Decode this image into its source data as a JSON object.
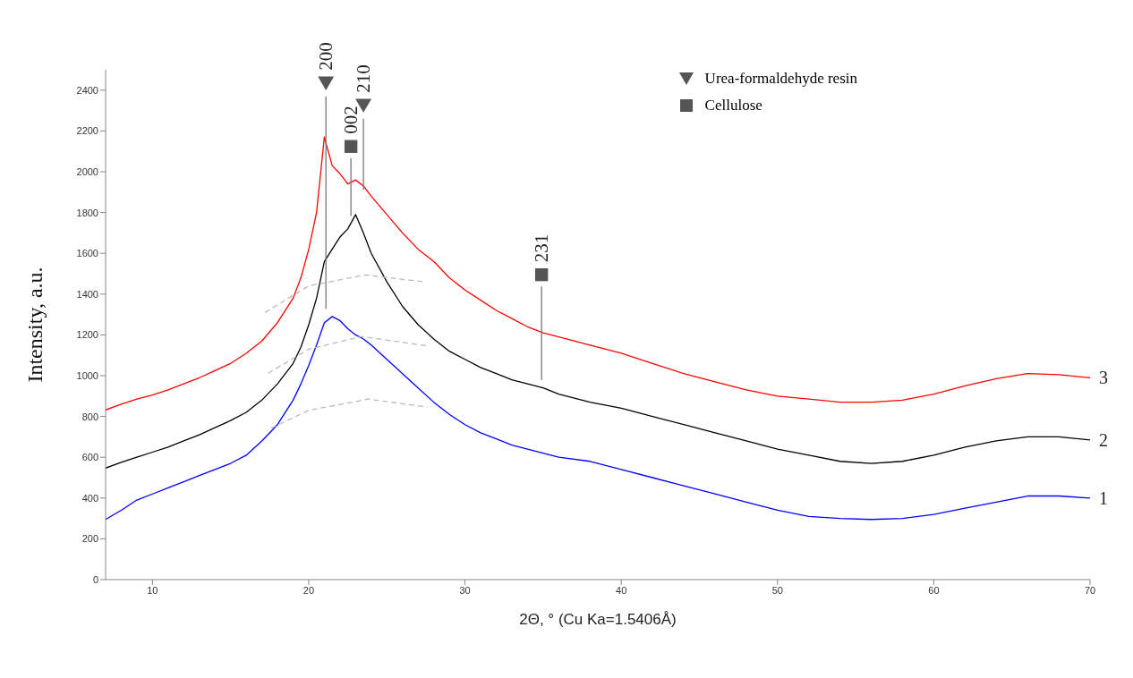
{
  "chart_data": {
    "type": "line",
    "xlabel": "2Θ, ° (Cu Ka=1.5406Å)",
    "ylabel": "Intensity, a.u.",
    "xlim": [
      7,
      70
    ],
    "xticks": [
      10,
      20,
      30,
      40,
      50,
      60,
      70
    ],
    "ylim": [
      0,
      2500
    ],
    "yticks": [
      0,
      200,
      400,
      600,
      800,
      1000,
      1200,
      1400,
      1600,
      1800,
      2000,
      2200,
      2400
    ],
    "grid": false,
    "legend": "top right",
    "x": [
      7,
      8,
      9,
      10,
      11,
      12,
      13,
      14,
      15,
      16,
      17,
      18,
      19,
      19.5,
      20,
      20.5,
      21,
      21.5,
      22,
      22.5,
      23,
      23.5,
      24,
      25,
      26,
      27,
      28,
      29,
      30,
      31,
      32,
      33,
      34,
      35,
      36,
      38,
      40,
      42,
      44,
      46,
      48,
      50,
      52,
      54,
      56,
      58,
      60,
      62,
      64,
      66,
      68,
      70
    ],
    "series": [
      {
        "name": "3",
        "color": "#ff0000",
        "values": [
          832,
          860,
          885,
          905,
          930,
          960,
          990,
          1025,
          1060,
          1110,
          1170,
          1260,
          1380,
          1480,
          1620,
          1800,
          2170,
          2030,
          1990,
          1940,
          1960,
          1930,
          1880,
          1790,
          1700,
          1620,
          1560,
          1480,
          1420,
          1370,
          1320,
          1280,
          1240,
          1210,
          1190,
          1150,
          1110,
          1060,
          1010,
          970,
          930,
          900,
          885,
          870,
          870,
          880,
          910,
          950,
          985,
          1010,
          1005,
          990
        ]
      },
      {
        "name": "2",
        "color": "#000000",
        "values": [
          547,
          575,
          600,
          625,
          650,
          680,
          710,
          745,
          780,
          820,
          880,
          960,
          1060,
          1140,
          1250,
          1380,
          1560,
          1620,
          1680,
          1720,
          1790,
          1700,
          1600,
          1460,
          1340,
          1250,
          1180,
          1120,
          1080,
          1040,
          1010,
          980,
          960,
          940,
          910,
          870,
          840,
          800,
          760,
          720,
          680,
          640,
          610,
          580,
          570,
          580,
          610,
          650,
          680,
          700,
          700,
          685
        ]
      },
      {
        "name": "1",
        "color": "#0000ff",
        "values": [
          295,
          340,
          390,
          420,
          450,
          480,
          510,
          540,
          570,
          610,
          680,
          760,
          880,
          960,
          1050,
          1150,
          1260,
          1290,
          1270,
          1230,
          1200,
          1180,
          1150,
          1080,
          1010,
          940,
          870,
          810,
          760,
          720,
          690,
          660,
          640,
          620,
          600,
          580,
          540,
          500,
          460,
          420,
          380,
          340,
          310,
          300,
          295,
          300,
          320,
          350,
          380,
          410,
          410,
          400
        ]
      },
      {
        "type": "line",
        "color": "#bbbbbb",
        "line_style": "dashed",
        "x": [
          17.2,
          20,
          23.6,
          27.4
        ],
        "values": [
          1310,
          1440,
          1494,
          1460
        ]
      },
      {
        "type": "line",
        "color": "#bbbbbb",
        "line_style": "dashed",
        "x": [
          17.4,
          20,
          23.4,
          27.6
        ],
        "values": [
          1012,
          1130,
          1192,
          1146
        ]
      },
      {
        "type": "line",
        "color": "#bbbbbb",
        "line_style": "dashed",
        "x": [
          17.6,
          20,
          23.8,
          27.6
        ],
        "values": [
          743,
          830,
          885,
          846
        ]
      },
      {
        "type": "line",
        "color": "#777777",
        "x": [
          21.1,
          21.1
        ],
        "values": [
          2369,
          1328
        ]
      },
      {
        "type": "line",
        "color": "#777777",
        "x": [
          22.7,
          22.7
        ],
        "values": [
          2066,
          1783
        ]
      },
      {
        "type": "line",
        "color": "#777777",
        "x": [
          23.5,
          23.5
        ],
        "values": [
          2260,
          1911
        ]
      },
      {
        "type": "line",
        "color": "#777777",
        "x": [
          34.9,
          34.9
        ],
        "values": [
          1437,
          979
        ]
      },
      {
        "type": "scatter",
        "name": "Urea-formaldehyde resin",
        "color": "#555555",
        "marker": "triangle",
        "x": [
          21.1,
          23.5
        ],
        "values": [
          2435,
          2326
        ]
      },
      {
        "type": "scatter",
        "name": "Cellulose",
        "color": "#555555",
        "marker": "square",
        "x": [
          22.7,
          34.9
        ],
        "values": [
          2124,
          1495
        ]
      }
    ],
    "annotations": [
      {
        "text": "200",
        "x": 21.1,
        "y": 2435
      },
      {
        "text": "002",
        "x": 22.7,
        "y": 2124
      },
      {
        "text": "210",
        "x": 23.5,
        "y": 2326
      },
      {
        "text": "231",
        "x": 34.9,
        "y": 1495
      }
    ]
  }
}
